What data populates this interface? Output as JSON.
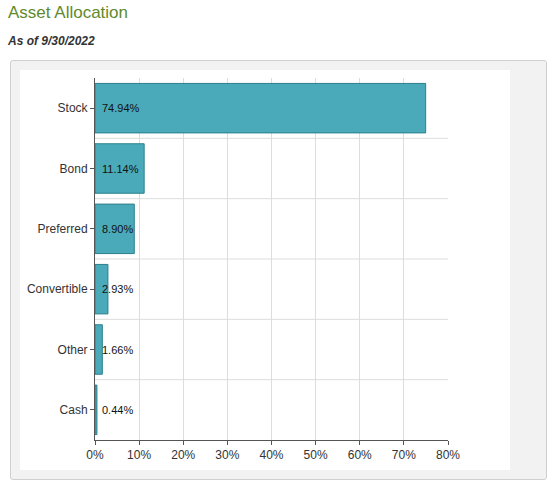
{
  "chart_data": {
    "type": "bar",
    "title": "Asset Allocation",
    "subtitle": "As of 9/30/2022",
    "orientation": "horizontal",
    "categories": [
      "Stock",
      "Bond",
      "Preferred",
      "Convertible",
      "Other",
      "Cash"
    ],
    "values": [
      74.94,
      11.14,
      8.9,
      2.93,
      1.66,
      0.44
    ],
    "value_labels": [
      "74.94%",
      "11.14%",
      "8.90%",
      "2.93%",
      "1.66%",
      "0.44%"
    ],
    "data_labels": true,
    "color": "#4aaab9",
    "xlim": [
      0,
      80
    ],
    "xticks": [
      {
        "value": 0,
        "label": "0%"
      },
      {
        "value": 10,
        "label": "10%"
      },
      {
        "value": 20,
        "label": "20%"
      },
      {
        "value": 30,
        "label": "30%"
      },
      {
        "value": 40,
        "label": "40%"
      },
      {
        "value": 50,
        "label": "50%"
      },
      {
        "value": 60,
        "label": "60%"
      },
      {
        "value": 70,
        "label": "70%"
      },
      {
        "value": 80,
        "label": "80%"
      }
    ],
    "grid": true
  }
}
